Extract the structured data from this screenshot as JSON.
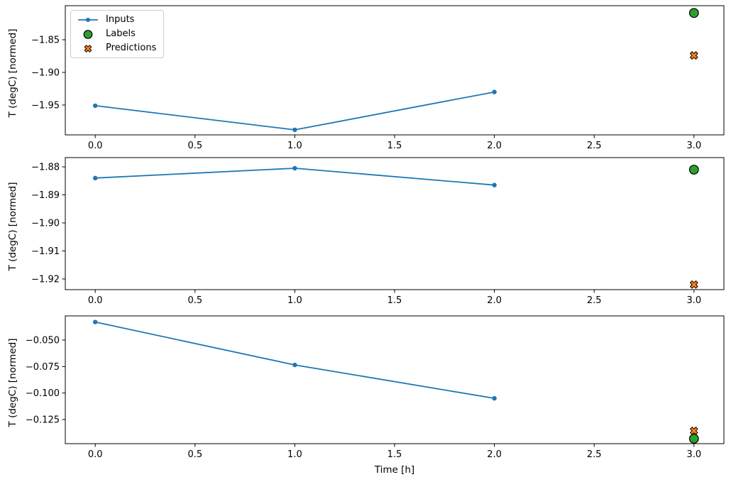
{
  "figure": {
    "title": "",
    "type": "matplotlib-multi-panel-timeseries"
  },
  "colors": {
    "inputs": "#1f77b4",
    "labels": "#2ca02c",
    "predictions": "#ff7f0e",
    "marker_edge": "#000000",
    "axis": "#000000",
    "legend_border": "#cccccc"
  },
  "legend": {
    "items": [
      {
        "label": "Inputs",
        "marker": "line-dot"
      },
      {
        "label": "Labels",
        "marker": "circle"
      },
      {
        "label": "Predictions",
        "marker": "x"
      }
    ]
  },
  "chart_data": [
    {
      "type": "line",
      "title": "",
      "xlabel": "",
      "ylabel": "T (degC) [normed]",
      "xlim": [
        -0.15,
        3.15
      ],
      "ylim": [
        -1.9957,
        -1.7978
      ],
      "xticks": [
        0.0,
        0.5,
        1.0,
        1.5,
        2.0,
        2.5,
        3.0
      ],
      "xtick_labels": [
        "0.0",
        "0.5",
        "1.0",
        "1.5",
        "2.0",
        "2.5",
        "3.0"
      ],
      "yticks": [
        -1.85,
        -1.9,
        -1.95
      ],
      "ytick_labels": [
        "−1.85",
        "−1.90",
        "−1.95"
      ],
      "grid": false,
      "legend_position": "upper left",
      "series": [
        {
          "name": "Inputs",
          "type": "line",
          "x": [
            0,
            1,
            2
          ],
          "y": [
            -1.951,
            -1.988,
            -1.93
          ]
        },
        {
          "name": "Labels",
          "type": "scatter-circle",
          "x": [
            3
          ],
          "y": [
            -1.809
          ]
        },
        {
          "name": "Predictions",
          "type": "scatter-x",
          "x": [
            3
          ],
          "y": [
            -1.874
          ]
        }
      ]
    },
    {
      "type": "line",
      "title": "",
      "xlabel": "",
      "ylabel": "T (degC) [normed]",
      "xlim": [
        -0.15,
        3.15
      ],
      "ylim": [
        -1.9238,
        -1.8767
      ],
      "xticks": [
        0.0,
        0.5,
        1.0,
        1.5,
        2.0,
        2.5,
        3.0
      ],
      "xtick_labels": [
        "0.0",
        "0.5",
        "1.0",
        "1.5",
        "2.0",
        "2.5",
        "3.0"
      ],
      "yticks": [
        -1.88,
        -1.89,
        -1.9,
        -1.91,
        -1.92
      ],
      "ytick_labels": [
        "−1.88",
        "−1.89",
        "−1.90",
        "−1.91",
        "−1.92"
      ],
      "grid": false,
      "series": [
        {
          "name": "Inputs",
          "type": "line",
          "x": [
            0,
            1,
            2
          ],
          "y": [
            -1.884,
            -1.8805,
            -1.8865
          ]
        },
        {
          "name": "Labels",
          "type": "scatter-circle",
          "x": [
            3
          ],
          "y": [
            -1.881
          ]
        },
        {
          "name": "Predictions",
          "type": "scatter-x",
          "x": [
            3
          ],
          "y": [
            -1.922
          ]
        }
      ]
    },
    {
      "type": "line",
      "title": "",
      "xlabel": "Time [h]",
      "ylabel": "T (degC) [normed]",
      "xlim": [
        -0.15,
        3.15
      ],
      "ylim": [
        -0.1478,
        -0.0272
      ],
      "xticks": [
        0.0,
        0.5,
        1.0,
        1.5,
        2.0,
        2.5,
        3.0
      ],
      "xtick_labels": [
        "0.0",
        "0.5",
        "1.0",
        "1.5",
        "2.0",
        "2.5",
        "3.0"
      ],
      "yticks": [
        -0.05,
        -0.075,
        -0.1,
        -0.125
      ],
      "ytick_labels": [
        "−0.050",
        "−0.075",
        "−0.100",
        "−0.125"
      ],
      "grid": false,
      "series": [
        {
          "name": "Inputs",
          "type": "line",
          "x": [
            0,
            1,
            2
          ],
          "y": [
            -0.033,
            -0.0735,
            -0.105
          ]
        },
        {
          "name": "Labels",
          "type": "scatter-circle",
          "x": [
            3
          ],
          "y": [
            -0.1431
          ]
        },
        {
          "name": "Predictions",
          "type": "scatter-x",
          "x": [
            3
          ],
          "y": [
            -0.1357
          ]
        }
      ]
    }
  ]
}
